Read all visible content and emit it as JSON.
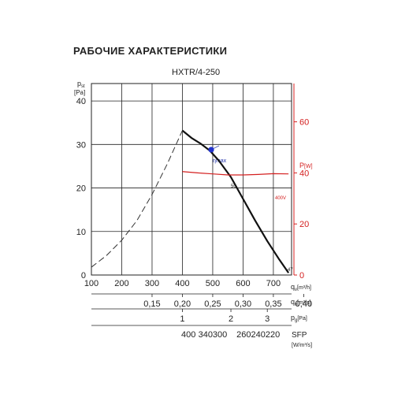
{
  "page_title": "РАБОЧИЕ ХАРАКТЕРИСТИКИ",
  "chart_data": {
    "type": "line",
    "title": "HXTR/4-250",
    "x": {
      "label": "qv[m³/h]",
      "label_main": "q",
      "label_sub": "v",
      "label_unit": "[m³/h]",
      "range": [
        100,
        760
      ],
      "ticks": [
        100,
        200,
        300,
        400,
        500,
        600,
        700
      ]
    },
    "y_left": {
      "label_main": "p",
      "label_sub": "st",
      "label_unit": "[Pa]",
      "range": [
        0,
        44
      ],
      "ticks": [
        0,
        10,
        20,
        30,
        40
      ]
    },
    "y_right": {
      "label_main": "P",
      "label_unit": "[W]",
      "range": [
        0,
        75
      ],
      "ticks": [
        0,
        20,
        40,
        60
      ],
      "color": "#d42020"
    },
    "grid": true,
    "series": [
      {
        "name": "pressure-curve",
        "color": "#111111",
        "axis": "left",
        "style": "solid",
        "x": [
          400,
          430,
          460,
          490,
          520,
          560,
          600,
          640,
          680,
          720,
          750
        ],
        "y": [
          33.2,
          31.5,
          30.2,
          28.6,
          26.3,
          22.5,
          17.5,
          12.5,
          7.8,
          3.5,
          0.5
        ]
      },
      {
        "name": "pressure-curve-extension",
        "color": "#333333",
        "axis": "left",
        "style": "dashed",
        "x": [
          100,
          150,
          200,
          250,
          300,
          350,
          400
        ],
        "y": [
          1.8,
          4.5,
          8.0,
          12.5,
          18.5,
          25.5,
          33.2
        ]
      },
      {
        "name": "power-curve",
        "color": "#d42020",
        "axis": "right",
        "style": "solid",
        "x": [
          400,
          450,
          500,
          550,
          600,
          650,
          700,
          750
        ],
        "y": [
          40.5,
          40.0,
          39.6,
          39.2,
          39.2,
          39.4,
          39.7,
          39.6
        ]
      }
    ],
    "annotations": {
      "eta_max_label": "ηmax",
      "eta_max_point": {
        "x": 495,
        "y": 28.8
      },
      "label_50": "50",
      "label_400v": "400V",
      "label_47": "47"
    },
    "scales": [
      {
        "name": "qv-m3s",
        "label": "qv[m³/s]",
        "label_main": "q",
        "label_sub": "v",
        "label_unit": "[m³/s]",
        "ticks": [
          {
            "value": "0,15",
            "qv_m3h": 540
          },
          {
            "value": "0,20",
            "qv_m3h": 720
          },
          {
            "value": "0,25",
            "qv_m3h": 900
          },
          {
            "value": "0,30",
            "qv_m3h": 1080
          },
          {
            "value": "0,35",
            "qv_m3h": 1260
          },
          {
            "value": "0,40",
            "qv_m3h": 1440
          }
        ]
      },
      {
        "name": "pg",
        "label": "pg[Pa]",
        "label_main": "p",
        "label_sub": "g",
        "label_unit": "[Pa]",
        "ticks": [
          {
            "value": "1",
            "qv_m3h": 400
          },
          {
            "value": "2",
            "qv_m3h": 560
          },
          {
            "value": "3",
            "qv_m3h": 680
          }
        ]
      },
      {
        "name": "sfp",
        "label_main": "SFP",
        "label_unit": "[W/m³/s]",
        "ticks": [
          {
            "value": "400",
            "qv_m3h": 420
          },
          {
            "value": "340300",
            "qv_m3h": 500
          },
          {
            "value": "260240220",
            "qv_m3h": 650
          }
        ]
      }
    ]
  }
}
